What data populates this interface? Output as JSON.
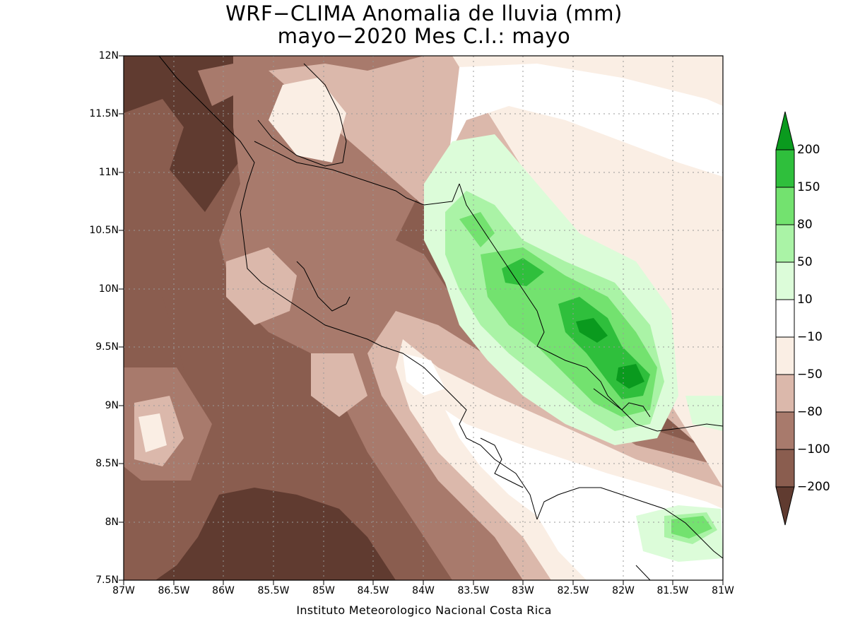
{
  "title": {
    "line1": "WRF−CLIMA Anomalia de lluvia (mm)",
    "line2": "mayo−2020 Mes C.I.: mayo"
  },
  "axes": {
    "lon_min": -87,
    "lon_max": -81,
    "lat_min": 7.5,
    "lat_max": 12,
    "x_ticks": [
      "87W",
      "86.5W",
      "86W",
      "85.5W",
      "85W",
      "84.5W",
      "84W",
      "83.5W",
      "83W",
      "82.5W",
      "82W",
      "81.5W",
      "81W"
    ],
    "y_ticks": [
      "12N",
      "11.5N",
      "11N",
      "10.5N",
      "10N",
      "9.5N",
      "9N",
      "8.5N",
      "8N",
      "7.5N"
    ],
    "grid": "dotted"
  },
  "colorbar": {
    "labels": [
      "200",
      "150",
      "80",
      "50",
      "10",
      "−10",
      "−50",
      "−80",
      "−100",
      "−200"
    ],
    "colors": {
      "gt200": "#0a9a1e",
      "150_200": "#2fbf3c",
      "80_150": "#73e26f",
      "50_80": "#aaf3a6",
      "10_50": "#dcfcd9",
      "m10_10": "#ffffff",
      "m50_m10": "#faeee4",
      "m80_m50": "#dbb8ab",
      "m100_m80": "#a87a6c",
      "m200_m100": "#8a5d4f",
      "lt_m200": "#603b30"
    }
  },
  "footer": "Instituto Meteorologico Nacional Costa Rica"
}
